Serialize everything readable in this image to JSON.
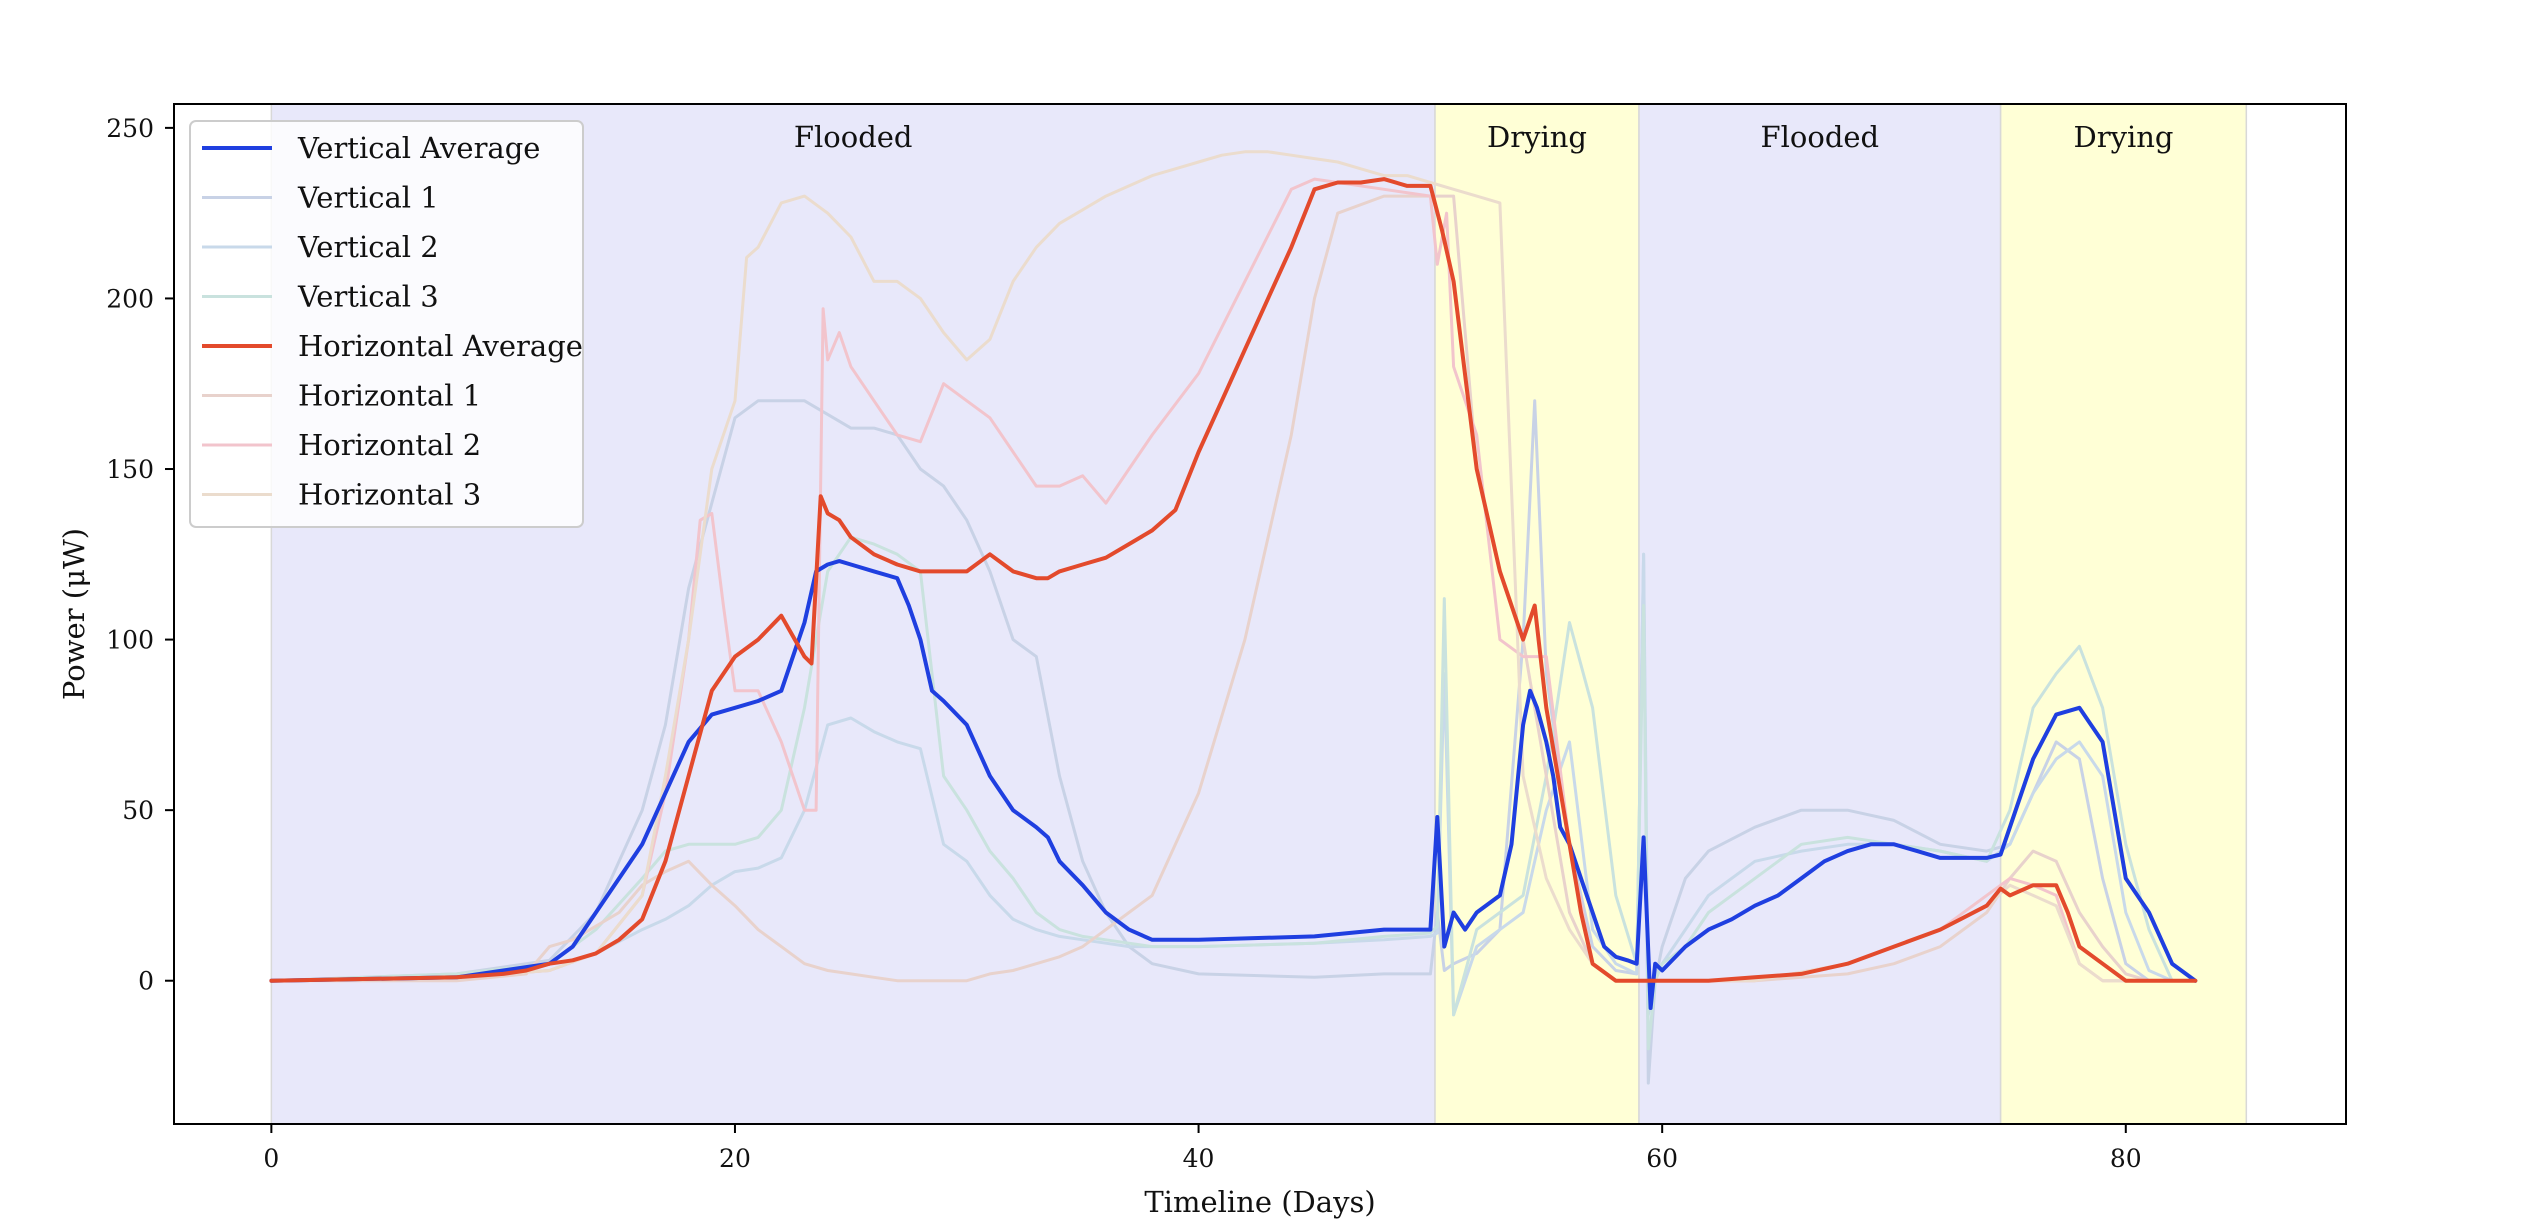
{
  "chart_data": {
    "type": "line",
    "xlabel": "Timeline (Days)",
    "ylabel": "Power (μW)",
    "xlim": [
      -4.2,
      89.5
    ],
    "ylim": [
      -42,
      257
    ],
    "xticks": [
      0,
      20,
      40,
      60,
      80
    ],
    "yticks": [
      0,
      50,
      100,
      150,
      200,
      250
    ],
    "xtick_labels": [
      "0",
      "20",
      "40",
      "60",
      "80"
    ],
    "ytick_labels": [
      "0",
      "50",
      "100",
      "150",
      "200",
      "250"
    ],
    "grid": false,
    "legend_position": "top-left",
    "regions": [
      {
        "label": "Flooded",
        "start": 0,
        "end": 50.2,
        "color": "#e8e8fa"
      },
      {
        "label": "Drying",
        "start": 50.2,
        "end": 59,
        "color": "#ffffd6"
      },
      {
        "label": "Flooded",
        "start": 59,
        "end": 74.6,
        "color": "#e8e8fa"
      },
      {
        "label": "Drying",
        "start": 74.6,
        "end": 85.2,
        "color": "#ffffd6"
      }
    ],
    "series": [
      {
        "name": "Vertical 1",
        "color": "#c8d2e6",
        "width": 3,
        "x": [
          0,
          8,
          12,
          14,
          15,
          16,
          17,
          18,
          19,
          20,
          21,
          22,
          23,
          24,
          25,
          26,
          27,
          28,
          29,
          30,
          31,
          32,
          33,
          34,
          35,
          36,
          37,
          38,
          40,
          45,
          48,
          50,
          50.3,
          50.6,
          51,
          52,
          53,
          54,
          54.5,
          55,
          56,
          57,
          58,
          58.9,
          59.2,
          59.4,
          59.7,
          60,
          61,
          62,
          64,
          66,
          68,
          70,
          72,
          74,
          75,
          76,
          77,
          78,
          79,
          80,
          81,
          82,
          83
        ],
        "y": [
          0,
          2,
          6,
          20,
          35,
          50,
          75,
          115,
          140,
          165,
          170,
          170,
          170,
          166,
          162,
          162,
          160,
          150,
          145,
          135,
          120,
          100,
          95,
          60,
          35,
          20,
          10,
          5,
          2,
          1,
          2,
          2,
          20,
          3,
          5,
          8,
          15,
          100,
          170,
          90,
          40,
          10,
          3,
          2,
          125,
          -30,
          0,
          10,
          30,
          38,
          45,
          50,
          50,
          47,
          40,
          38,
          40,
          55,
          70,
          65,
          30,
          5,
          0,
          0,
          0
        ]
      },
      {
        "name": "Vertical 2",
        "color": "#c8d9ea",
        "width": 3,
        "x": [
          0,
          8,
          12,
          14,
          16,
          17,
          18,
          19,
          20,
          21,
          22,
          23,
          24,
          25,
          26,
          27,
          28,
          29,
          30,
          31,
          32,
          33,
          34,
          35,
          36,
          37,
          38,
          40,
          45,
          48,
          50,
          50.3,
          50.6,
          51,
          52,
          53,
          54,
          55,
          56,
          57,
          58,
          58.9,
          59.2,
          59.4,
          59.7,
          60,
          61,
          62,
          64,
          66,
          68,
          70,
          72,
          74,
          75,
          76,
          77,
          78,
          79,
          80,
          81,
          82,
          83
        ],
        "y": [
          0,
          1,
          3,
          8,
          15,
          18,
          22,
          28,
          32,
          33,
          36,
          50,
          75,
          77,
          73,
          70,
          68,
          40,
          35,
          25,
          18,
          15,
          13,
          12,
          11,
          10,
          10,
          10,
          11,
          12,
          13,
          14,
          90,
          -10,
          10,
          15,
          20,
          50,
          70,
          15,
          5,
          2,
          125,
          -10,
          0,
          5,
          15,
          25,
          35,
          38,
          40,
          40,
          38,
          35,
          40,
          55,
          65,
          70,
          60,
          20,
          3,
          0,
          0
        ]
      },
      {
        "name": "Vertical 3",
        "color": "#c9e2de",
        "width": 3,
        "x": [
          0,
          8,
          12,
          14,
          16,
          17,
          18,
          19,
          20,
          21,
          22,
          23,
          24,
          25,
          26,
          27,
          28,
          29,
          30,
          31,
          32,
          33,
          34,
          35,
          36,
          37,
          38,
          40,
          45,
          48,
          50,
          50.3,
          50.6,
          51,
          52,
          53,
          54,
          55,
          56,
          57,
          58,
          58.9,
          59.2,
          59.4,
          59.7,
          60,
          61,
          62,
          64,
          66,
          68,
          70,
          72,
          74,
          75,
          76,
          77,
          78,
          79,
          80,
          81,
          82,
          83
        ],
        "y": [
          0,
          2,
          5,
          15,
          30,
          38,
          40,
          40,
          40,
          42,
          50,
          80,
          120,
          130,
          128,
          125,
          120,
          60,
          50,
          38,
          30,
          20,
          15,
          13,
          12,
          11,
          10,
          10,
          11,
          13,
          14,
          16,
          112,
          -10,
          15,
          20,
          25,
          60,
          105,
          80,
          25,
          5,
          110,
          -20,
          0,
          5,
          10,
          20,
          30,
          40,
          42,
          40,
          38,
          35,
          50,
          80,
          90,
          98,
          80,
          40,
          15,
          0,
          0
        ]
      },
      {
        "name": "Horizontal 1",
        "color": "#e8d2cc",
        "width": 3,
        "x": [
          0,
          8,
          11,
          12,
          13,
          15,
          16,
          17,
          18,
          19,
          20,
          21,
          22,
          23,
          24,
          25,
          26,
          27,
          28,
          29,
          30,
          31,
          32,
          33,
          34,
          35,
          36,
          37,
          38,
          40,
          42,
          44,
          45,
          46,
          48,
          50,
          51,
          52,
          53,
          54,
          55,
          56,
          57,
          58,
          59,
          60,
          64,
          68,
          70,
          72,
          74,
          75,
          76,
          77,
          78,
          79,
          80,
          81,
          82,
          83
        ],
        "y": [
          0,
          0,
          2,
          10,
          12,
          20,
          28,
          32,
          35,
          28,
          22,
          15,
          10,
          5,
          3,
          2,
          1,
          0,
          0,
          0,
          0,
          2,
          3,
          5,
          7,
          10,
          15,
          20,
          25,
          55,
          100,
          160,
          200,
          225,
          230,
          230,
          230,
          150,
          120,
          100,
          60,
          20,
          5,
          0,
          0,
          0,
          0,
          2,
          5,
          10,
          20,
          30,
          38,
          35,
          20,
          10,
          2,
          0,
          0,
          0
        ]
      },
      {
        "name": "Horizontal 2",
        "color": "#f2c4cc",
        "width": 3,
        "x": [
          0,
          8,
          12,
          14,
          16,
          17,
          18,
          18.5,
          19,
          19.5,
          20,
          21,
          22,
          23,
          23.5,
          23.8,
          24,
          24.5,
          25,
          26,
          27,
          28,
          29,
          30,
          31,
          32,
          33,
          34,
          35,
          36,
          37,
          38,
          40,
          42,
          44,
          45,
          46,
          48,
          50,
          50.3,
          50.7,
          51,
          52,
          53,
          54,
          55,
          56,
          57,
          58,
          60,
          64,
          68,
          70,
          72,
          74,
          75,
          76,
          77,
          78,
          79,
          80
        ],
        "y": [
          0,
          1,
          3,
          8,
          25,
          55,
          100,
          135,
          137,
          110,
          85,
          85,
          70,
          50,
          50,
          197,
          182,
          190,
          180,
          170,
          160,
          158,
          175,
          170,
          165,
          155,
          145,
          145,
          148,
          140,
          150,
          160,
          178,
          205,
          232,
          235,
          234,
          232,
          230,
          210,
          225,
          180,
          160,
          100,
          95,
          95,
          40,
          5,
          0,
          0,
          0,
          5,
          10,
          15,
          25,
          30,
          28,
          25,
          5,
          0,
          0
        ]
      },
      {
        "name": "Horizontal 3",
        "color": "#ebdccd",
        "width": 3,
        "x": [
          0,
          8,
          12,
          14,
          16,
          17,
          18,
          19,
          20,
          20.5,
          21,
          22,
          23,
          24,
          25,
          26,
          27,
          28,
          29,
          30,
          31,
          32,
          33,
          34,
          35,
          36,
          37,
          38,
          39,
          40,
          41,
          42,
          43,
          44,
          45,
          46,
          47,
          48,
          49,
          50,
          51,
          52,
          53,
          54,
          55,
          56,
          57,
          58,
          59,
          60,
          64,
          68,
          70,
          72,
          74,
          75,
          76,
          77,
          78,
          79,
          80
        ],
        "y": [
          0,
          1,
          3,
          8,
          25,
          60,
          100,
          150,
          170,
          212,
          215,
          228,
          230,
          225,
          218,
          205,
          205,
          200,
          190,
          182,
          188,
          205,
          215,
          222,
          226,
          230,
          233,
          236,
          238,
          240,
          242,
          243,
          243,
          242,
          241,
          240,
          238,
          236,
          236,
          234,
          232,
          230,
          228,
          60,
          30,
          15,
          5,
          0,
          0,
          0,
          0,
          5,
          10,
          15,
          22,
          28,
          25,
          22,
          5,
          0,
          0
        ]
      },
      {
        "name": "Vertical Average",
        "color": "#1f3fe0",
        "width": 4,
        "x": [
          0,
          8,
          10,
          12,
          13,
          14,
          15,
          16,
          17,
          18,
          19,
          20,
          21,
          22,
          23,
          23.5,
          24,
          24.5,
          25,
          26,
          27,
          27.5,
          28,
          28.5,
          29,
          30,
          31,
          32,
          33,
          33.5,
          34,
          35,
          36,
          37,
          38,
          40,
          45,
          48,
          50,
          50.3,
          50.6,
          51,
          51.5,
          52,
          53,
          53.5,
          54,
          54.3,
          54.6,
          55,
          55.3,
          55.6,
          56,
          56.5,
          57,
          57.5,
          58,
          58.5,
          58.9,
          59.2,
          59.5,
          59.7,
          60,
          61,
          62,
          63,
          64,
          65,
          66,
          67,
          68,
          69,
          70,
          71,
          72,
          73,
          74,
          74.6,
          75,
          76,
          77,
          78,
          79,
          80,
          81,
          82,
          83
        ],
        "y": [
          0,
          1,
          3,
          5,
          10,
          20,
          30,
          40,
          55,
          70,
          78,
          80,
          82,
          85,
          105,
          120,
          122,
          123,
          122,
          120,
          118,
          110,
          100,
          85,
          82,
          75,
          60,
          50,
          45,
          42,
          35,
          28,
          20,
          15,
          12,
          12,
          13,
          15,
          15,
          48,
          10,
          20,
          15,
          20,
          25,
          40,
          75,
          85,
          80,
          70,
          60,
          45,
          40,
          30,
          20,
          10,
          7,
          6,
          5,
          42,
          -8,
          5,
          3,
          10,
          15,
          18,
          22,
          25,
          30,
          35,
          38,
          40,
          40,
          38,
          36,
          36,
          36,
          37,
          45,
          65,
          78,
          80,
          70,
          30,
          20,
          5,
          0
        ]
      },
      {
        "name": "Horizontal Average",
        "color": "#e34a2c",
        "width": 4,
        "x": [
          0,
          8,
          10,
          11,
          12,
          13,
          14,
          15,
          16,
          17,
          18,
          19,
          20,
          21,
          22,
          23,
          23.3,
          23.7,
          24,
          24.5,
          25,
          26,
          27,
          28,
          29,
          30,
          31,
          32,
          33,
          33.5,
          34,
          35,
          36,
          37,
          38,
          39,
          40,
          41,
          42,
          43,
          44,
          45,
          46,
          47,
          48,
          49,
          50,
          50.5,
          51,
          52,
          53,
          54,
          54.5,
          55,
          55.5,
          56,
          56.5,
          57,
          58,
          59,
          60,
          62,
          64,
          66,
          68,
          70,
          72,
          74,
          74.6,
          75,
          76,
          77,
          77.5,
          78,
          79,
          80,
          81,
          82,
          83
        ],
        "y": [
          0,
          1,
          2,
          3,
          5,
          6,
          8,
          12,
          18,
          35,
          60,
          85,
          95,
          100,
          107,
          95,
          93,
          142,
          137,
          135,
          130,
          125,
          122,
          120,
          120,
          120,
          125,
          120,
          118,
          118,
          120,
          122,
          124,
          128,
          132,
          138,
          155,
          170,
          185,
          200,
          215,
          232,
          234,
          234,
          235,
          233,
          233,
          220,
          205,
          150,
          120,
          100,
          110,
          80,
          60,
          40,
          20,
          5,
          0,
          0,
          0,
          0,
          1,
          2,
          5,
          10,
          15,
          22,
          27,
          25,
          28,
          28,
          20,
          10,
          5,
          0,
          0,
          0,
          0
        ]
      }
    ]
  }
}
